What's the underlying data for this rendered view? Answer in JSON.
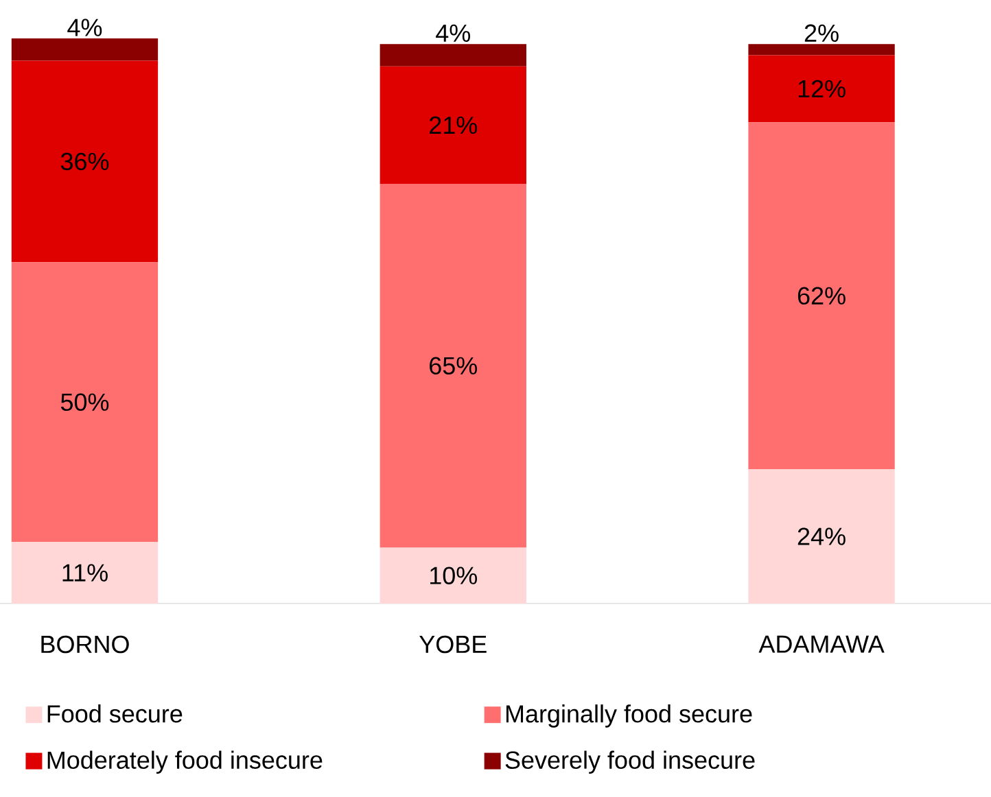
{
  "chart_data": {
    "type": "bar",
    "stacked": true,
    "legend": "bottom",
    "categories": [
      "BORNO",
      "YOBE",
      "ADAMAWA"
    ],
    "series": [
      {
        "name": "Food secure",
        "color": "#ffd7d7",
        "values": [
          11,
          10,
          24
        ],
        "value_labels": [
          "11%",
          "10%",
          "24%"
        ]
      },
      {
        "name": "Marginally food secure",
        "color": "#ff6f6f",
        "values": [
          50,
          65,
          62
        ],
        "value_labels": [
          "50%",
          "65%",
          "62%"
        ]
      },
      {
        "name": "Moderately food insecure",
        "color": "#df0000",
        "values": [
          36,
          21,
          12
        ],
        "value_labels": [
          "36%",
          "21%",
          "12%"
        ]
      },
      {
        "name": "Severely food insecure",
        "color": "#8b0000",
        "values": [
          4,
          4,
          2
        ],
        "value_labels": [
          "4%",
          "4%",
          "2%"
        ]
      }
    ]
  }
}
